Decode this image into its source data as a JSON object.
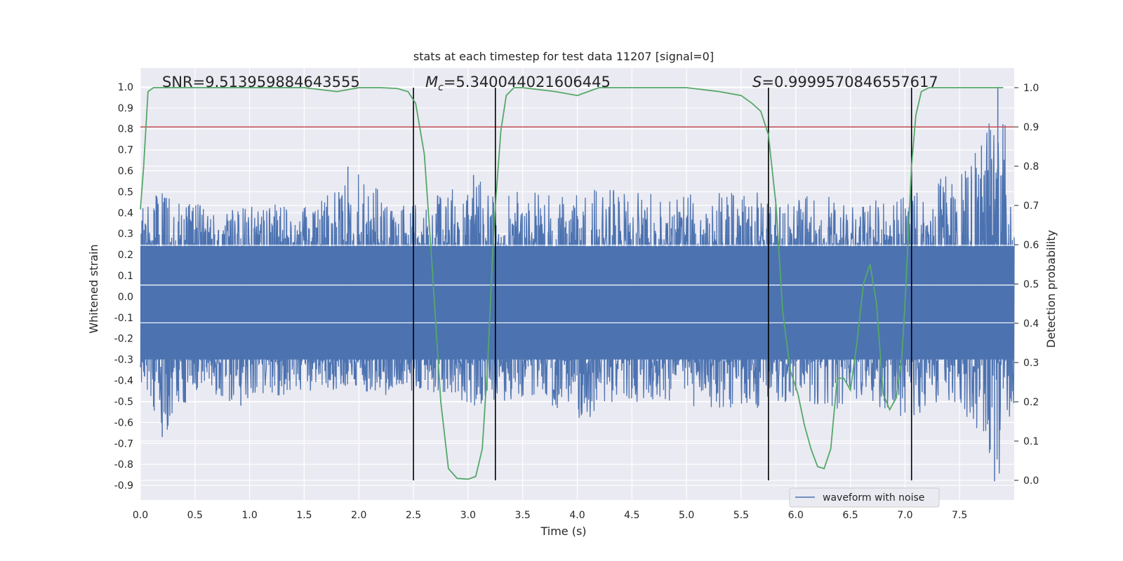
{
  "chart_data": {
    "type": "line",
    "title": "stats at each timestep for test data 11207 [signal=0]",
    "xlabel": "Time (s)",
    "ylabel": "Whitened strain",
    "y2label": "Detection probability",
    "xlim": [
      0.0,
      8.0
    ],
    "ylim": [
      -0.97,
      1.09
    ],
    "y2lim": [
      -0.05,
      1.05
    ],
    "xticks": [
      "0.0",
      "0.5",
      "1.0",
      "1.5",
      "2.0",
      "2.5",
      "3.0",
      "3.5",
      "4.0",
      "4.5",
      "5.0",
      "5.5",
      "6.0",
      "6.5",
      "7.0",
      "7.5"
    ],
    "yticks": [
      "1.0",
      "0.9",
      "0.8",
      "0.7",
      "0.6",
      "0.5",
      "0.4",
      "0.3",
      "0.2",
      "0.1",
      "0.0",
      "-0.1",
      "-0.2",
      "-0.3",
      "-0.4",
      "-0.5",
      "-0.6",
      "-0.7",
      "-0.8",
      "-0.9"
    ],
    "y2ticks": [
      "1.0",
      "0.9",
      "0.8",
      "0.7",
      "0.6",
      "0.5",
      "0.4",
      "0.3",
      "0.2",
      "0.1",
      "0.0"
    ],
    "annotations": {
      "snr": "SNR=9.513959884643555",
      "mc_symbol": "M",
      "mc_sub": "c",
      "mc_value": "=5.340044021606445",
      "s_symbol": "S",
      "s_value": "=0.9999570846557617"
    },
    "legend": {
      "label": "waveform with noise",
      "location": "lower-right"
    },
    "threshold": {
      "prob": 0.9,
      "color": "#c44e52"
    },
    "boundaries": [
      2.5,
      3.25,
      5.75,
      7.06
    ],
    "series": [
      {
        "name": "waveform with noise",
        "color": "#4c72b0",
        "envelope_x": [
          0.0,
          0.2,
          0.5,
          0.9,
          1.2,
          1.6,
          2.0,
          2.3,
          2.6,
          3.0,
          3.3,
          3.6,
          4.0,
          4.4,
          4.8,
          5.2,
          5.6,
          6.0,
          6.3,
          6.6,
          6.9,
          7.2,
          7.5,
          7.7,
          7.85,
          8.0
        ],
        "envelope_upper": [
          0.47,
          0.52,
          0.45,
          0.42,
          0.44,
          0.43,
          0.62,
          0.44,
          0.45,
          0.58,
          0.5,
          0.5,
          0.5,
          0.53,
          0.47,
          0.5,
          0.5,
          0.47,
          0.5,
          0.46,
          0.47,
          0.52,
          0.63,
          0.72,
          1.0,
          0.6
        ],
        "envelope_lower": [
          -0.4,
          -0.67,
          -0.45,
          -0.52,
          -0.48,
          -0.45,
          -0.45,
          -0.48,
          -0.45,
          -0.54,
          -0.5,
          -0.47,
          -0.6,
          -0.52,
          -0.5,
          -0.56,
          -0.53,
          -0.5,
          -0.55,
          -0.5,
          -0.6,
          -0.55,
          -0.6,
          -0.73,
          -0.88,
          -0.5
        ],
        "dense_upper": 0.24,
        "dense_lower": -0.3,
        "spike_highs": [
          [
            0.2,
            -0.67
          ],
          [
            0.92,
            -0.52
          ],
          [
            1.9,
            0.62
          ],
          [
            3.05,
            0.58
          ],
          [
            5.65,
            -0.53
          ],
          [
            7.85,
            1.0
          ],
          [
            7.82,
            -0.88
          ],
          [
            7.78,
            -0.73
          ],
          [
            7.7,
            0.72
          ]
        ]
      },
      {
        "name": "detection probability",
        "color": "#55a868",
        "axis": "right",
        "x": [
          0.0,
          0.03,
          0.07,
          0.12,
          0.3,
          0.6,
          1.0,
          1.5,
          1.8,
          2.0,
          2.2,
          2.35,
          2.45,
          2.52,
          2.6,
          2.67,
          2.75,
          2.82,
          2.9,
          3.0,
          3.07,
          3.13,
          3.18,
          3.22,
          3.25,
          3.3,
          3.35,
          3.42,
          3.5,
          3.8,
          4.0,
          4.2,
          4.6,
          5.0,
          5.3,
          5.5,
          5.6,
          5.68,
          5.75,
          5.82,
          5.88,
          5.95,
          6.02,
          6.08,
          6.14,
          6.2,
          6.26,
          6.32,
          6.38,
          6.44,
          6.5,
          6.56,
          6.62,
          6.68,
          6.74,
          6.8,
          6.86,
          6.92,
          6.97,
          7.0,
          7.03,
          7.06,
          7.1,
          7.15,
          7.22,
          7.3,
          7.5,
          7.9
        ],
        "y": [
          0.69,
          0.8,
          0.99,
          1.0,
          1.0,
          1.0,
          1.0,
          1.0,
          0.99,
          1.0,
          1.0,
          0.998,
          0.99,
          0.96,
          0.83,
          0.55,
          0.2,
          0.03,
          0.005,
          0.003,
          0.01,
          0.08,
          0.3,
          0.55,
          0.7,
          0.89,
          0.98,
          1.0,
          1.0,
          0.99,
          0.98,
          1.0,
          1.0,
          1.0,
          0.99,
          0.98,
          0.96,
          0.94,
          0.88,
          0.7,
          0.43,
          0.28,
          0.22,
          0.14,
          0.08,
          0.035,
          0.03,
          0.08,
          0.26,
          0.26,
          0.23,
          0.35,
          0.5,
          0.55,
          0.45,
          0.22,
          0.18,
          0.21,
          0.31,
          0.45,
          0.62,
          0.8,
          0.93,
          0.99,
          1.0,
          1.0,
          1.0,
          1.0
        ]
      }
    ]
  }
}
